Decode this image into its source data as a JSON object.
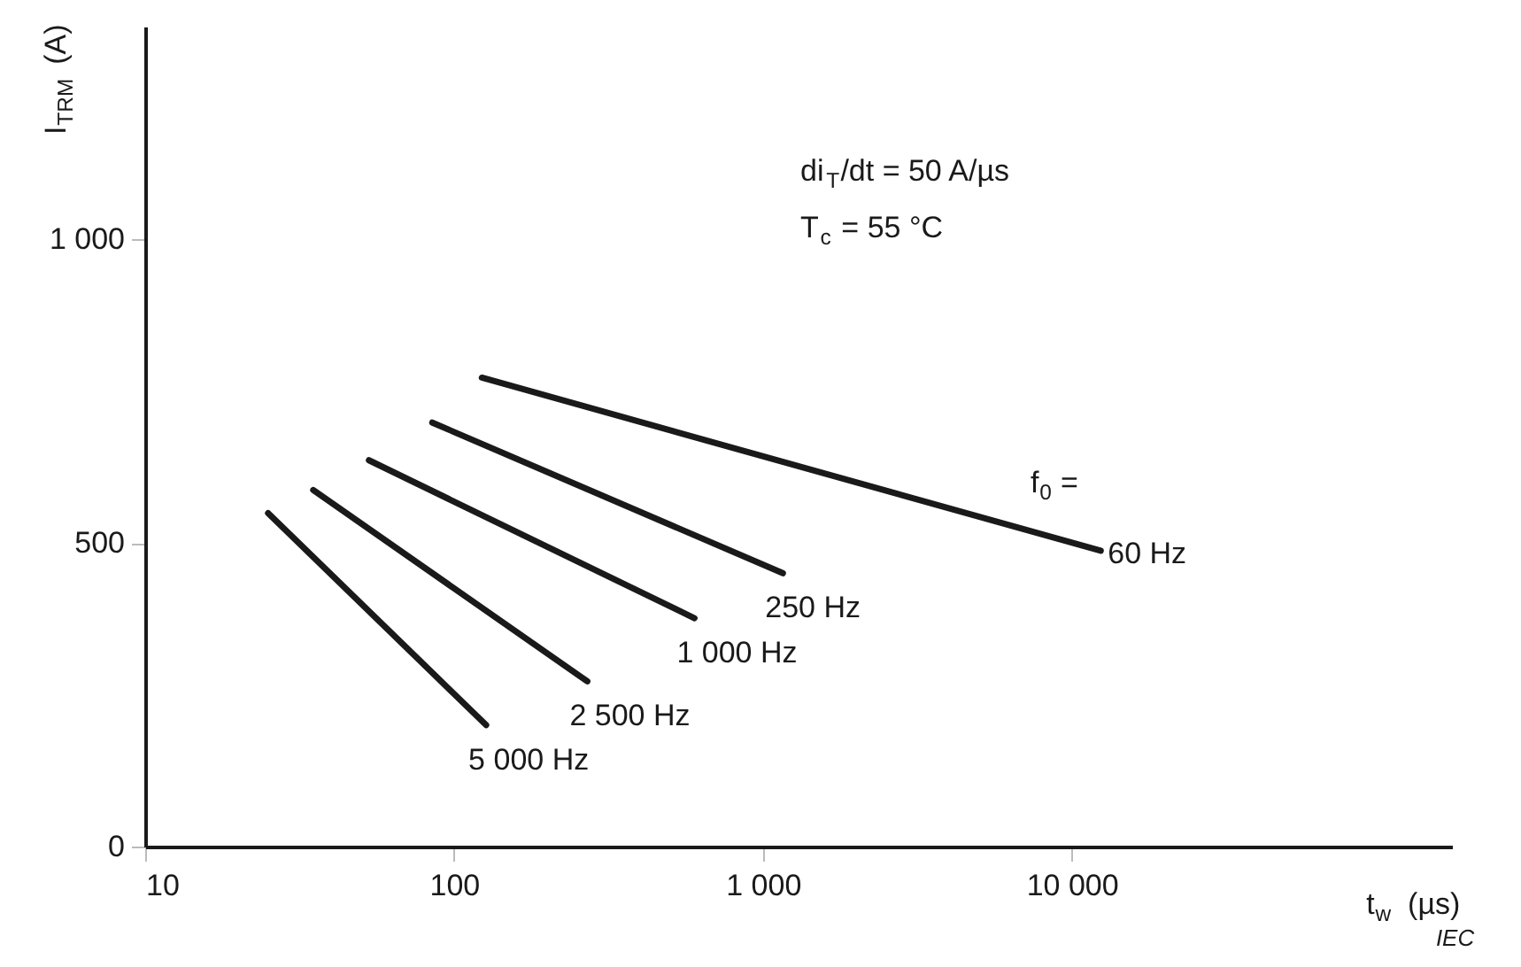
{
  "chart_data": {
    "type": "line",
    "xlabel": "t$_{w}$  (µs)",
    "ylabel": "I$_{TRM}$  (A)",
    "log": "x",
    "xlim": [
      10,
      170000
    ],
    "ylim": [
      0,
      1350
    ],
    "xticks": [
      10,
      100,
      {
        "value": 1000,
        "label": "1 000"
      },
      {
        "value": 10000,
        "label": "10 000"
      }
    ],
    "yticks": [
      0,
      500,
      {
        "value": 1000,
        "label": "1 000"
      }
    ],
    "grid": false,
    "marker": "none",
    "line_style": "solid",
    "series": [
      {
        "name": "5 000 Hz",
        "color": "#1a1a1a",
        "x": [
          25,
          127
        ],
        "values": [
          549,
          200
        ]
      },
      {
        "name": "2 500 Hz",
        "color": "#1a1a1a",
        "x": [
          35,
          270
        ],
        "values": [
          587,
          272
        ]
      },
      {
        "name": "1 000 Hz",
        "color": "#1a1a1a",
        "x": [
          53,
          600
        ],
        "values": [
          636,
          376
        ]
      },
      {
        "name": "250 Hz",
        "color": "#1a1a1a",
        "x": [
          85,
          1160
        ],
        "values": [
          698,
          450
        ]
      },
      {
        "name": "60 Hz",
        "color": "#1a1a1a",
        "x": [
          123,
          12400
        ],
        "values": [
          772,
          487
        ]
      }
    ],
    "annotations": [
      "di$_{T}$/dt = 50 A/µs",
      "T$_{c}$ = 55 °C",
      "f$_{0}$ =",
      "IEC"
    ]
  }
}
